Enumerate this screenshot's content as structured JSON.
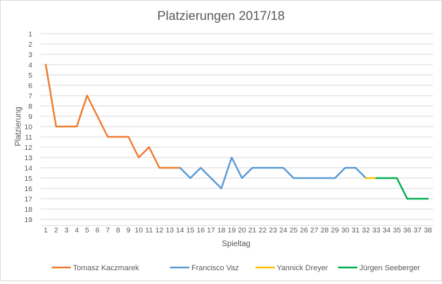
{
  "chart_data": {
    "type": "line",
    "title": "Platzierungen 2017/18",
    "xlabel": "Spieltag",
    "ylabel": "Platzierung",
    "x": [
      1,
      2,
      3,
      4,
      5,
      6,
      7,
      8,
      9,
      10,
      11,
      12,
      13,
      14,
      15,
      16,
      17,
      18,
      19,
      20,
      21,
      22,
      23,
      24,
      25,
      26,
      27,
      28,
      29,
      30,
      31,
      32,
      33,
      34,
      35,
      36,
      37,
      38
    ],
    "xlim": [
      1,
      38
    ],
    "ylim": [
      1,
      19
    ],
    "y_inverted": true,
    "y_ticks": [
      1,
      2,
      3,
      4,
      5,
      6,
      7,
      8,
      9,
      10,
      11,
      12,
      13,
      14,
      15,
      16,
      17,
      18,
      19
    ],
    "grid": "horizontal",
    "legend": "bottom",
    "series": [
      {
        "name": "Tomasz Kaczmarek",
        "color": "#ED7D31",
        "x": [
          1,
          2,
          3,
          4,
          5,
          6,
          7,
          8,
          9,
          10,
          11,
          12,
          13,
          14
        ],
        "values": [
          4,
          10,
          10,
          10,
          7,
          9,
          11,
          11,
          11,
          13,
          12,
          14,
          14,
          14
        ]
      },
      {
        "name": "Francisco Vaz",
        "color": "#5B9BD5",
        "x": [
          14,
          15,
          16,
          17,
          18,
          19,
          20,
          21,
          22,
          23,
          24,
          25,
          26,
          27,
          28,
          29,
          30,
          31,
          32
        ],
        "values": [
          14,
          15,
          14,
          15,
          16,
          13,
          15,
          14,
          14,
          14,
          14,
          15,
          15,
          15,
          15,
          15,
          14,
          14,
          15
        ]
      },
      {
        "name": "Yannick Dreyer",
        "color": "#FFC000",
        "x": [
          32,
          33
        ],
        "values": [
          15,
          15
        ]
      },
      {
        "name": "Jürgen Seeberger",
        "color": "#00B050",
        "x": [
          33,
          34,
          35,
          36,
          37,
          38
        ],
        "values": [
          15,
          15,
          15,
          17,
          17,
          17
        ]
      }
    ]
  }
}
